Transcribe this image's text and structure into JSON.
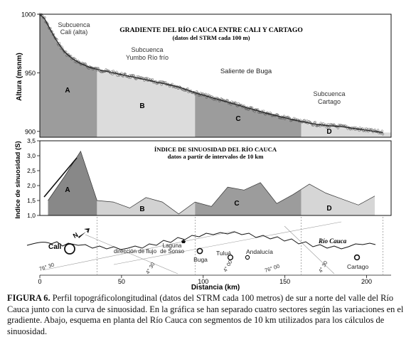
{
  "chart_data": [
    {
      "type": "area",
      "title": "GRADIENTE DEL RÍO CAUCA ENTRE CALI Y CARTAGO",
      "subtitle": "(datos del STRM cada 100 m)",
      "ylabel": "Altura (msnm)",
      "ylim": [
        895,
        1000
      ],
      "xlim": [
        0,
        215
      ],
      "yticks": [
        "1000",
        "950",
        "900"
      ],
      "sector_bounds": [
        0,
        35,
        95,
        160,
        210
      ],
      "sector_letters": [
        "A",
        "B",
        "C",
        "D"
      ],
      "sector_colors": [
        "#9c9c9c",
        "#dcdcdc",
        "#9c9c9c",
        "#dcdcdc"
      ],
      "region_labels": [
        "Subcuenca",
        "Cali (alta)",
        "Subcuenca",
        "Yumbo Río frío",
        "Saliente de Buga",
        "Subcuenca",
        "Cartago"
      ],
      "profile": {
        "x": [
          0,
          3,
          6,
          10,
          15,
          20,
          25,
          30,
          35,
          45,
          55,
          65,
          75,
          85,
          95,
          110,
          125,
          140,
          155,
          165,
          175,
          185,
          195,
          205,
          210
        ],
        "y": [
          1000,
          996,
          988,
          978,
          968,
          962,
          958,
          955,
          953,
          950,
          947,
          944,
          941,
          938,
          933,
          927,
          921,
          915,
          910,
          907,
          905,
          904,
          902,
          900,
          899
        ]
      }
    },
    {
      "type": "area",
      "title": "ÍNDICE DE SINUOSIDAD DEL RÍO CAUCA",
      "subtitle": "datos a partir de intervalos de 10 km",
      "ylabel": "Indice de sinuosidad (S)",
      "ylim": [
        1.0,
        3.5
      ],
      "yticks": [
        "3,5",
        "3,0",
        "2,5",
        "2,0",
        "1,5",
        "1,0"
      ],
      "sector_letters": [
        "A",
        "B",
        "C",
        "D"
      ],
      "sinuosity": {
        "x": [
          5,
          15,
          25,
          35,
          45,
          55,
          65,
          75,
          85,
          95,
          105,
          115,
          125,
          135,
          145,
          155,
          165,
          175,
          185,
          195,
          205
        ],
        "y": [
          1.5,
          2.3,
          3.15,
          1.5,
          1.45,
          1.25,
          1.6,
          1.45,
          1.05,
          1.45,
          1.3,
          1.95,
          1.85,
          2.1,
          1.4,
          1.7,
          2.05,
          1.75,
          1.55,
          1.35,
          1.65
        ]
      }
    },
    {
      "type": "map",
      "xlabel": "Distancia (km)",
      "xticks": [
        "0",
        "50",
        "100",
        "150",
        "200"
      ],
      "river_label": "Río Cauca",
      "places": [
        "Cali",
        "Laguna de Sonso",
        "Buga",
        "Tuluá",
        "Andalucía",
        "Cartago"
      ],
      "annotations": [
        "dirección de flujo",
        "N"
      ],
      "coords": [
        "76° 30",
        "4° 30",
        "4° 00",
        "76° 00",
        "4° 30"
      ]
    }
  ],
  "caption": {
    "lead": "FIGURA 6.",
    "text": " Perfil topográficolongitudinal (datos del STRM cada 100 metros) de sur a norte del valle del Río Cauca junto con la curva de sinuosidad. En la gráfica se han separado cuatro sectores según las variaciones en el gradiente. Abajo, esquema en planta del Río Cauca con segmentos de 10 km utilizados para los cálculos de sinuosidad."
  }
}
